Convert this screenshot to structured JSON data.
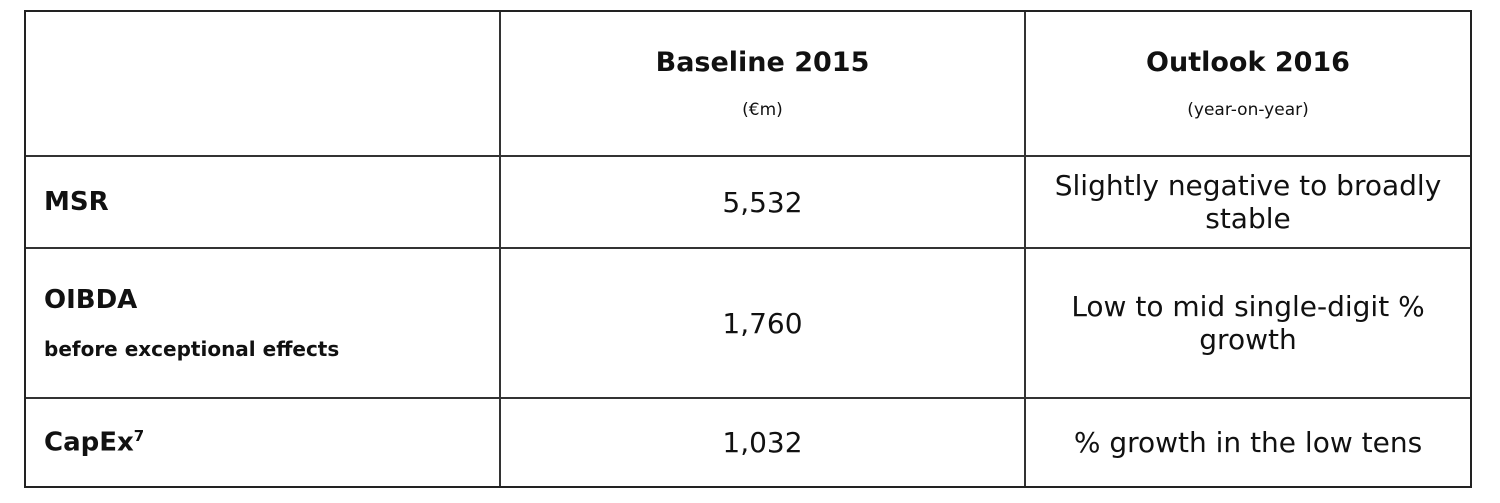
{
  "header": {
    "col2_title": "Baseline 2015",
    "col2_sub": "(€m)",
    "col3_title": "Outlook 2016",
    "col3_sub": "(year-on-year)"
  },
  "rows": [
    {
      "label": "MSR",
      "baseline": "5,532",
      "outlook": "Slightly negative to broadly stable"
    },
    {
      "label": "OIBDA",
      "sublabel": "before exceptional effects",
      "baseline": "1,760",
      "outlook": "Low to mid single-digit % growth"
    },
    {
      "label": "CapEx",
      "footnote": "7",
      "baseline": "1,032",
      "outlook": "% growth in the low tens"
    }
  ]
}
